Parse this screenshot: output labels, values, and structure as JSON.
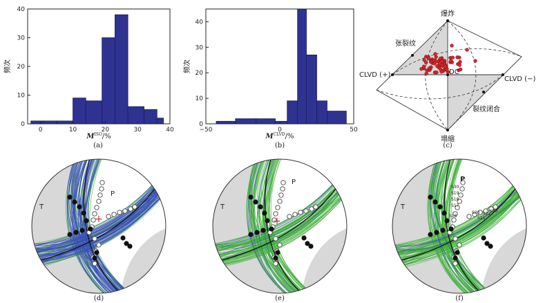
{
  "chart_data": [
    {
      "type": "bar",
      "panel": "a",
      "xlabel_main": "M",
      "xlabel_sup": "ISO",
      "xlabel_unit": "/%",
      "ylabel": "频次",
      "caption": "(a)",
      "bin_edges": [
        -3,
        1,
        5,
        10,
        14,
        19,
        23,
        27,
        32,
        36,
        38
      ],
      "values": [
        1,
        1,
        1,
        9,
        8,
        30,
        38,
        6,
        5,
        2
      ],
      "xlim": [
        -4,
        40
      ],
      "ylim": [
        0,
        40
      ],
      "xticks": [
        0,
        10,
        20,
        30,
        40
      ],
      "yticks": [
        0,
        10,
        20,
        30,
        40
      ]
    },
    {
      "type": "bar",
      "panel": "b",
      "xlabel_main": "M",
      "xlabel_sup": "CLVD",
      "xlabel_unit": "/%",
      "ylabel": "频次",
      "caption": "(b)",
      "bin_edges": [
        -43,
        -30,
        -16,
        -3,
        5,
        12,
        18,
        25,
        32,
        45
      ],
      "values": [
        1,
        2,
        2,
        1,
        9,
        45,
        27,
        9,
        5
      ],
      "xlim": [
        -50,
        50
      ],
      "ylim": [
        0,
        45
      ],
      "xticks": [
        -50,
        0,
        50
      ],
      "yticks": [
        0,
        10,
        20,
        30,
        40
      ]
    }
  ],
  "diamond": {
    "top": "爆炸",
    "bottom": "塌缩",
    "left": "CLVD (+)",
    "right": "CLVD (−)",
    "center": "DC",
    "upper_left": "张裂纹",
    "lower_right": "裂纹闭合",
    "caption": "(c)"
  },
  "beachballs": {
    "label_T": "T",
    "label_P": "P",
    "caption_d": "(d)",
    "caption_e": "(e)",
    "caption_f": "(f)",
    "stations": [
      "S30",
      "S19",
      "S18",
      "S17",
      "S16",
      "S20",
      "S21",
      "S22",
      "S23"
    ]
  },
  "colors": {
    "bar": "#2e3392",
    "green": "#3fae3a",
    "blue": "#3a4fb8",
    "red": "#d8262b",
    "grey": "#d8d8d8"
  }
}
